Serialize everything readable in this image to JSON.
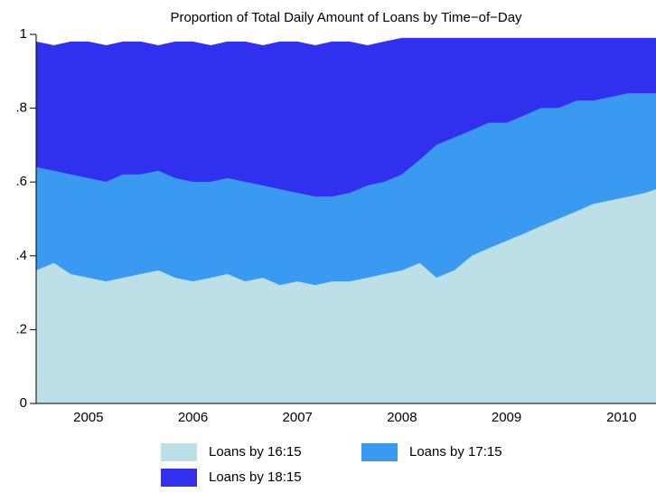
{
  "chart_data": {
    "type": "area",
    "title": "Proportion of Total Daily Amount of Loans by Time−of−Day",
    "x": [
      2005,
      2005.17,
      2005.33,
      2005.5,
      2005.67,
      2005.83,
      2006,
      2006.17,
      2006.33,
      2006.5,
      2006.67,
      2006.83,
      2007,
      2007.17,
      2007.33,
      2007.5,
      2007.67,
      2007.83,
      2008,
      2008.17,
      2008.33,
      2008.5,
      2008.67,
      2008.83,
      2009,
      2009.17,
      2009.33,
      2009.5,
      2009.67,
      2009.83,
      2010,
      2010.17,
      2010.33,
      2010.5,
      2010.67,
      2010.83,
      2010.93
    ],
    "series": [
      {
        "name": "Loans by 16:15",
        "color": "#bde0e8",
        "values": [
          0.36,
          0.38,
          0.35,
          0.34,
          0.33,
          0.34,
          0.35,
          0.36,
          0.34,
          0.33,
          0.34,
          0.35,
          0.33,
          0.34,
          0.32,
          0.33,
          0.32,
          0.33,
          0.33,
          0.34,
          0.35,
          0.36,
          0.38,
          0.34,
          0.36,
          0.4,
          0.42,
          0.44,
          0.46,
          0.48,
          0.5,
          0.52,
          0.54,
          0.55,
          0.56,
          0.57,
          0.58
        ]
      },
      {
        "name": "Loans by 17:15",
        "color": "#3a9af2",
        "values": [
          0.64,
          0.63,
          0.62,
          0.61,
          0.6,
          0.62,
          0.62,
          0.63,
          0.61,
          0.6,
          0.6,
          0.61,
          0.6,
          0.59,
          0.58,
          0.57,
          0.56,
          0.56,
          0.57,
          0.59,
          0.6,
          0.62,
          0.66,
          0.7,
          0.72,
          0.74,
          0.76,
          0.76,
          0.78,
          0.8,
          0.8,
          0.82,
          0.82,
          0.83,
          0.84,
          0.84,
          0.84
        ]
      },
      {
        "name": "Loans by 18:15",
        "color": "#3030ee",
        "values": [
          0.98,
          0.97,
          0.98,
          0.98,
          0.97,
          0.98,
          0.98,
          0.97,
          0.98,
          0.98,
          0.97,
          0.98,
          0.98,
          0.97,
          0.98,
          0.98,
          0.97,
          0.98,
          0.98,
          0.97,
          0.98,
          0.99,
          0.99,
          0.99,
          0.99,
          0.99,
          0.99,
          0.99,
          0.99,
          0.99,
          0.99,
          0.99,
          0.99,
          0.99,
          0.99,
          0.99,
          0.99
        ]
      }
    ],
    "xlim": [
      2005,
      2010.93
    ],
    "xticks": [
      {
        "value": 2005.5,
        "label": "2005"
      },
      {
        "value": 2006.5,
        "label": "2006"
      },
      {
        "value": 2007.5,
        "label": "2007"
      },
      {
        "value": 2008.5,
        "label": "2008"
      },
      {
        "value": 2009.5,
        "label": "2009"
      },
      {
        "value": 2010.6,
        "label": "2010"
      }
    ],
    "ylim": [
      0,
      1
    ],
    "yticks": [
      0,
      {
        "value": 0.2,
        "label": ".2"
      },
      {
        "value": 0.4,
        "label": ".4"
      },
      {
        "value": 0.6,
        "label": ".6"
      },
      {
        "value": 0.8,
        "label": ".8"
      },
      1
    ],
    "grid": false
  }
}
